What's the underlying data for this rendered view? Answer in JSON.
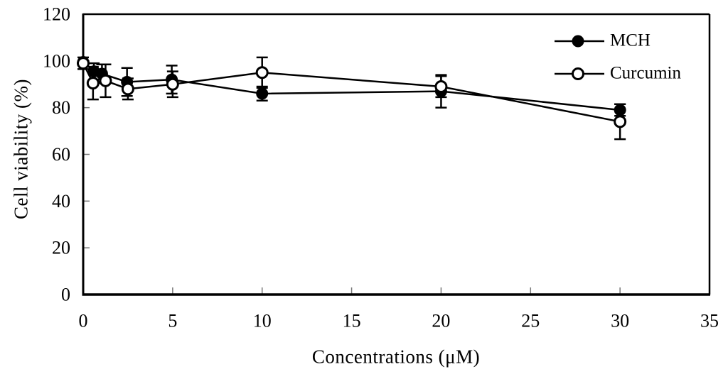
{
  "figure": {
    "background_color": "#ffffff",
    "foreground_color": "#000000",
    "tick_color": "#777777"
  },
  "chart_data": {
    "type": "line",
    "title": "",
    "xlabel": "Concentrations (μM)",
    "ylabel": "Cell viability (%)",
    "xlim": [
      0,
      35
    ],
    "ylim": [
      0,
      120
    ],
    "xticks": [
      0,
      5,
      10,
      15,
      20,
      25,
      30,
      35
    ],
    "yticks": [
      0,
      20,
      40,
      60,
      80,
      100,
      120
    ],
    "grid": false,
    "legend": {
      "position": "top-right-inside",
      "entries": [
        {
          "label": "MCH",
          "marker": "filled-circle"
        },
        {
          "label": "Curcumin",
          "marker": "open-circle"
        }
      ]
    },
    "series": [
      {
        "name": "MCH",
        "marker": "filled-circle",
        "color": "#000000",
        "x": [
          0,
          0.6,
          1.05,
          2.45,
          4.95,
          10,
          20,
          30
        ],
        "y": [
          99.5,
          95.5,
          94.5,
          91,
          92,
          86,
          87,
          79
        ],
        "yerr": [
          0,
          3.5,
          4,
          6,
          6,
          3,
          7,
          2.5
        ]
      },
      {
        "name": "Curcumin",
        "marker": "open-circle",
        "color": "#000000",
        "x": [
          0,
          0.55,
          1.25,
          2.5,
          5,
          10,
          20,
          30
        ],
        "y": [
          99,
          90.5,
          91.5,
          88,
          90,
          95,
          89,
          74
        ],
        "yerr": [
          2.5,
          7,
          7,
          4.5,
          5.5,
          6.5,
          4.5,
          7.5
        ]
      }
    ]
  }
}
